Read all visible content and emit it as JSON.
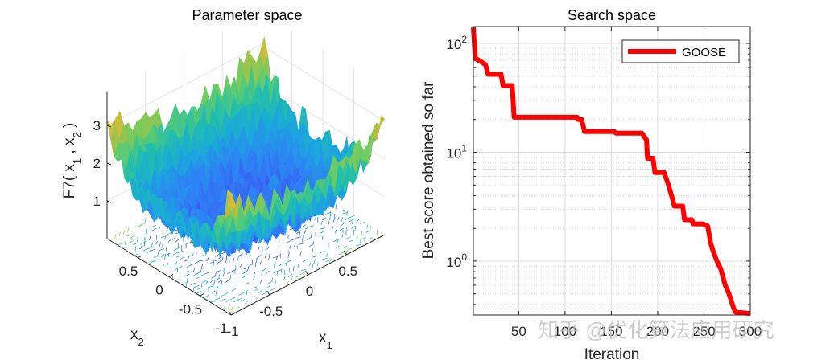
{
  "chart_data": [
    {
      "type": "surface",
      "title": "Parameter space",
      "xlabel": "x_1",
      "ylabel": "x_2",
      "zlabel": "F7( x_1 , x_2 )",
      "x_ticks": [
        "-1",
        "-0.5",
        "0",
        "0.5"
      ],
      "y_ticks": [
        "-1",
        "-0.5",
        "0",
        "0.5"
      ],
      "z_ticks": [
        "1",
        "2",
        "3"
      ],
      "xlim": [
        -1,
        1
      ],
      "ylim": [
        -1,
        1
      ],
      "zlim": [
        0,
        3.8
      ],
      "colormap": [
        "#3e26a8",
        "#3d50f0",
        "#2f80f6",
        "#1aa7dd",
        "#21bfab",
        "#6acd64",
        "#c0bc3c",
        "#f6c23a",
        "#f9e22a"
      ],
      "description": "Noisy quartic bowl surface (F7) with contour projection on the base plane; high values near corners, minimum around center"
    },
    {
      "type": "line",
      "title": "Search space",
      "xlabel": "Iteration",
      "ylabel": "Best score obtained so far",
      "yscale": "log",
      "xlim": [
        1,
        300
      ],
      "ylim": [
        0.32,
        143
      ],
      "x_ticks": [
        50,
        100,
        150,
        200,
        250,
        300
      ],
      "y_ticks": [
        {
          "value": 1,
          "label": "10",
          "exp": "0"
        },
        {
          "value": 10,
          "label": "10",
          "exp": "1"
        },
        {
          "value": 100,
          "label": "10",
          "exp": "2"
        }
      ],
      "grid": true,
      "legend_position": "top-right",
      "series": [
        {
          "name": "GOOSE",
          "color": "#ff0000",
          "x": [
            1,
            3,
            8,
            14,
            17,
            31,
            33,
            43,
            45,
            113,
            114,
            118,
            121,
            153,
            155,
            183,
            188,
            189,
            195,
            197,
            207,
            211,
            215,
            218,
            227,
            229,
            237,
            238,
            249,
            254,
            257,
            259,
            264,
            268,
            273,
            277,
            282,
            284,
            300
          ],
          "values": [
            140,
            73,
            69,
            64,
            52,
            52,
            41,
            41,
            21,
            21,
            20,
            20,
            15.5,
            15.5,
            15,
            15,
            13,
            8.8,
            8.8,
            6.5,
            6.5,
            5.2,
            4.0,
            3.2,
            3.2,
            2.4,
            2.4,
            2.2,
            2.2,
            2.1,
            1.5,
            1.3,
            1.0,
            0.85,
            0.6,
            0.5,
            0.37,
            0.34,
            0.33
          ]
        }
      ]
    }
  ],
  "watermark": "知乎 @优化算法应用研究"
}
